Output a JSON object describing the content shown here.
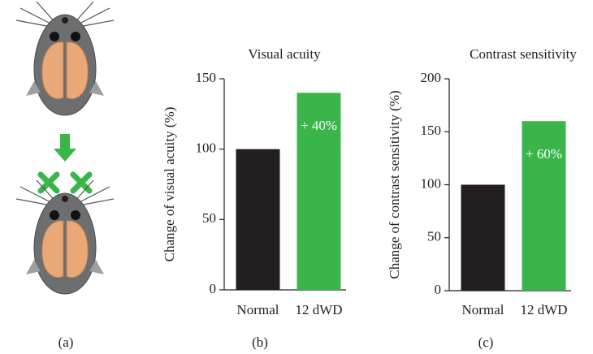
{
  "panel_labels": [
    "(a)",
    "(b)",
    "(c)"
  ],
  "chart_data": [
    {
      "type": "bar",
      "title": "Visual acuity",
      "y_label": "Change of visual acuity (%)",
      "categories": [
        "Normal",
        "12 dWD"
      ],
      "values": [
        100,
        140
      ],
      "colors": [
        "#231f20",
        "#39b54a"
      ],
      "annotation": "+ 40%",
      "ylim": [
        0,
        150
      ],
      "yticks": [
        0,
        50,
        100,
        150
      ]
    },
    {
      "type": "bar",
      "title": "Contrast sensitivity",
      "y_label": "Change of contrast sensitivity (%)",
      "categories": [
        "Normal",
        "12 dWD"
      ],
      "values": [
        100,
        160
      ],
      "colors": [
        "#231f20",
        "#39b54a"
      ],
      "annotation": "+ 60%",
      "ylim": [
        0,
        200
      ],
      "yticks": [
        0,
        50,
        100,
        150,
        200
      ]
    }
  ]
}
